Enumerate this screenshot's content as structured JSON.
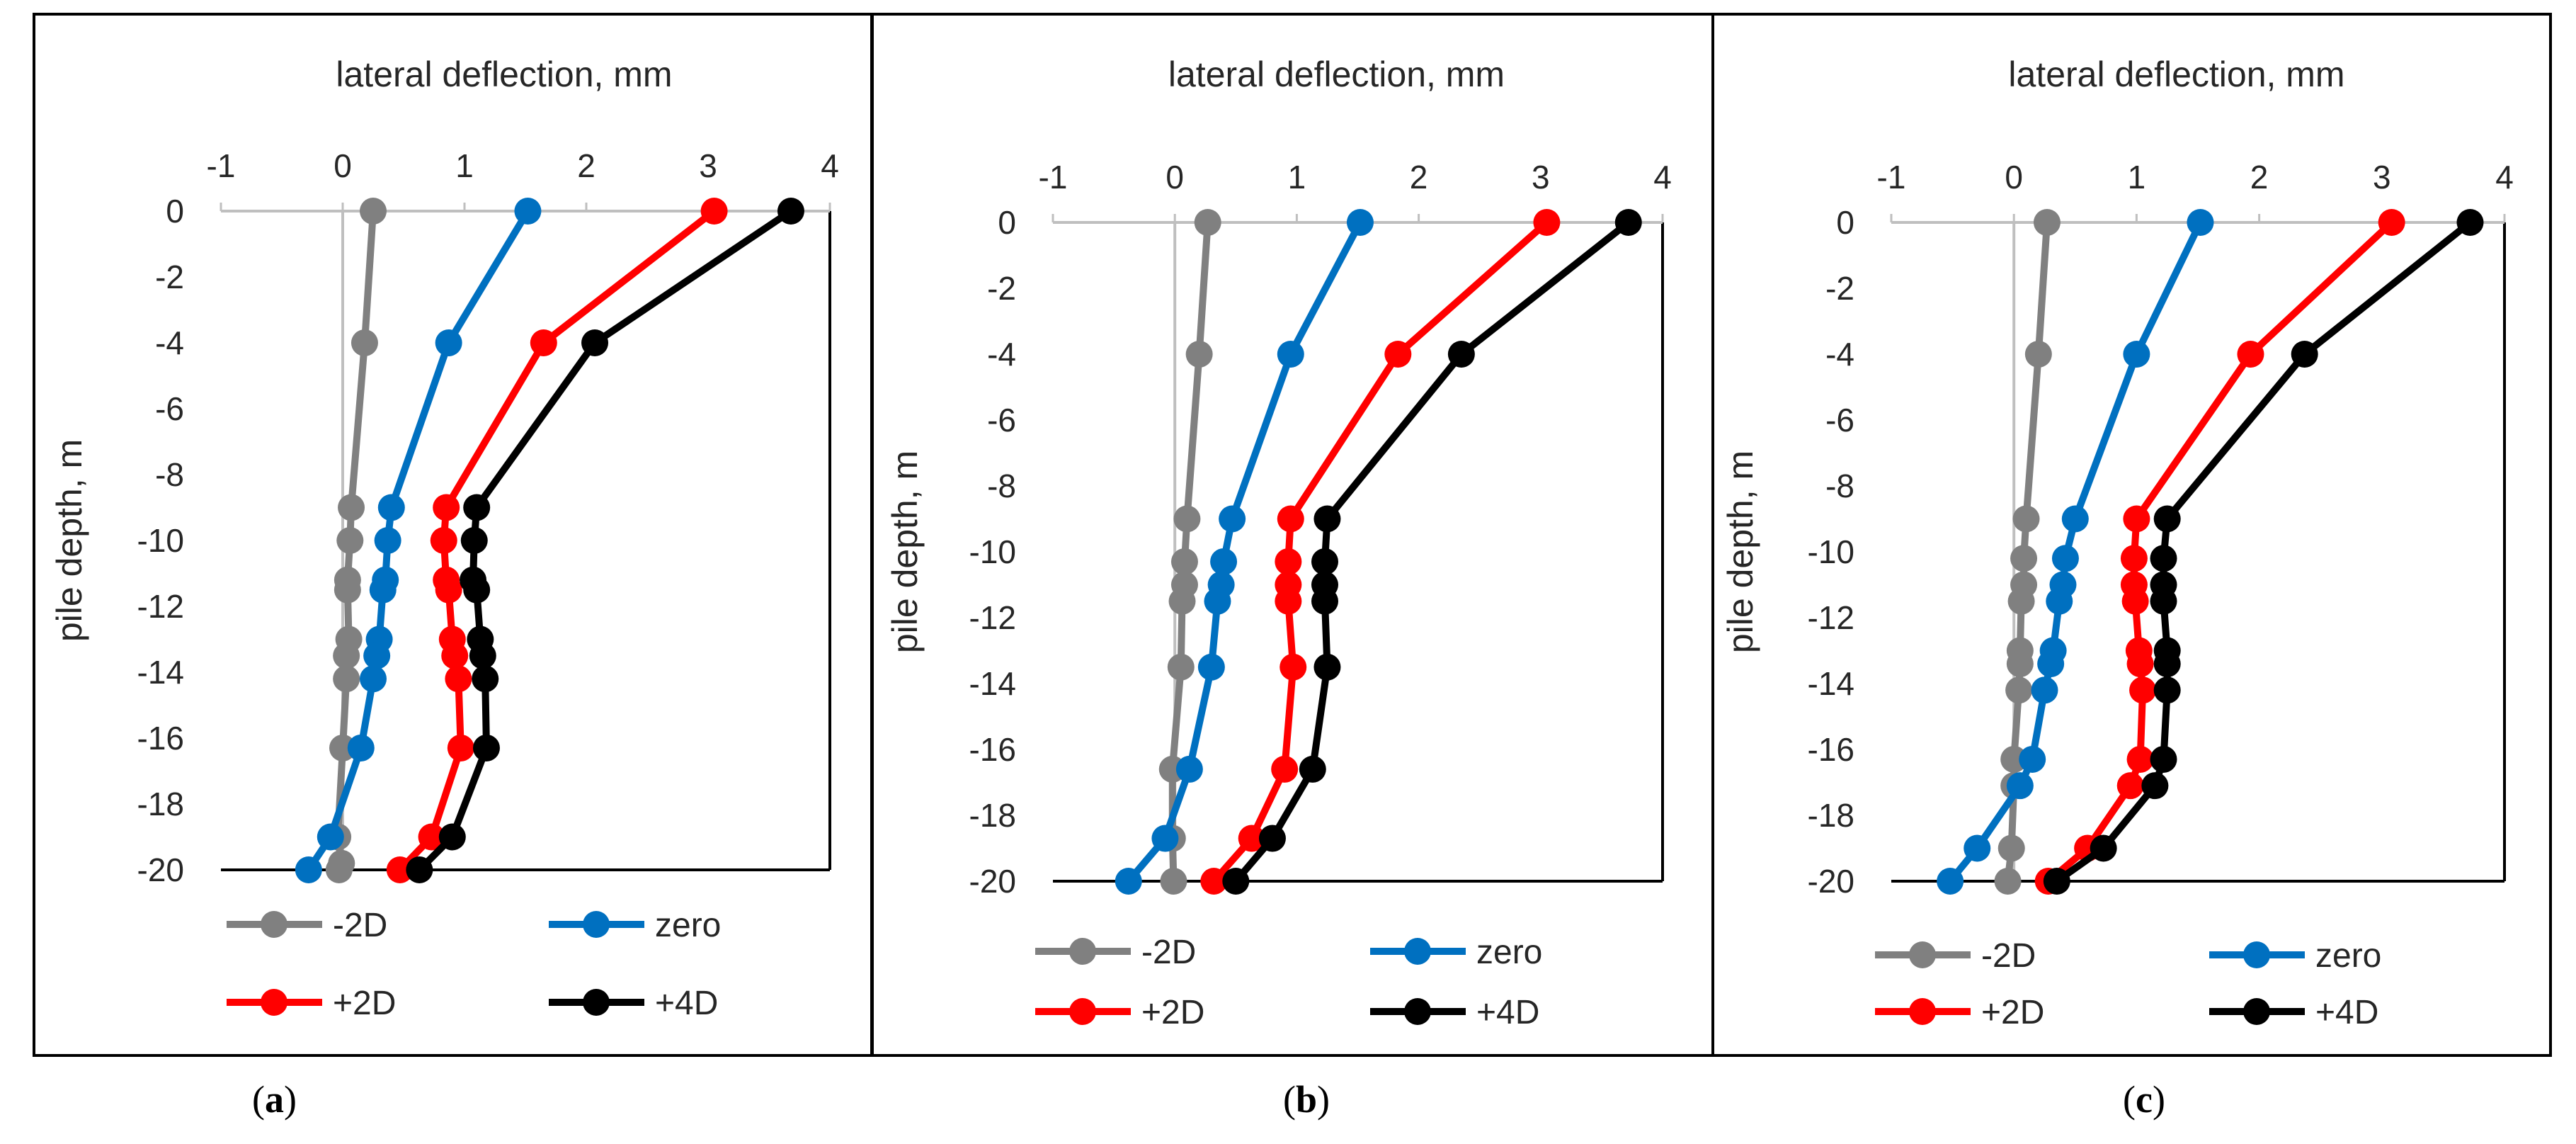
{
  "figure": {
    "colors": {
      "-2D": "#808080",
      "zero": "#0070c0",
      "+2D": "#ff0000",
      "+4D": "#000000"
    },
    "legend_order": [
      "-2D",
      "zero",
      "+2D",
      "+4D"
    ]
  },
  "chart_data": [
    {
      "type": "line",
      "panel_label": "(a)",
      "panel_letter": "a",
      "xlabel": "lateral deflection, mm",
      "ylabel": "pile depth, m",
      "xlim": [
        -1,
        4
      ],
      "ylim": [
        -20,
        0
      ],
      "xticks": [
        -1,
        0,
        1,
        2,
        3,
        4
      ],
      "yticks": [
        0,
        -2,
        -4,
        -6,
        -8,
        -10,
        -12,
        -14,
        -16,
        -18,
        -20
      ],
      "series": [
        {
          "name": "-2D",
          "x": [
            0.25,
            0.18,
            0.07,
            0.06,
            0.04,
            0.04,
            0.05,
            0.03,
            0.03,
            0.0,
            -0.04,
            -0.01,
            -0.03
          ],
          "y": [
            0,
            -4,
            -9,
            -10,
            -11.2,
            -11.5,
            -13,
            -13.5,
            -14.2,
            -16.3,
            -19,
            -19.8,
            -20
          ]
        },
        {
          "name": "zero",
          "x": [
            1.52,
            0.87,
            0.4,
            0.37,
            0.35,
            0.33,
            0.3,
            0.28,
            0.25,
            0.15,
            -0.1,
            -0.28
          ],
          "y": [
            0,
            -4,
            -9,
            -10,
            -11.2,
            -11.5,
            -13,
            -13.5,
            -14.2,
            -16.3,
            -19,
            -20
          ]
        },
        {
          "name": "+2D",
          "x": [
            3.05,
            1.65,
            0.85,
            0.83,
            0.85,
            0.87,
            0.9,
            0.92,
            0.95,
            0.97,
            0.73,
            0.47
          ],
          "y": [
            0,
            -4,
            -9,
            -10,
            -11.2,
            -11.5,
            -13,
            -13.5,
            -14.2,
            -16.3,
            -19,
            -20
          ]
        },
        {
          "name": "+4D",
          "x": [
            3.68,
            2.07,
            1.1,
            1.08,
            1.07,
            1.1,
            1.13,
            1.15,
            1.17,
            1.18,
            0.9,
            0.63
          ],
          "y": [
            0,
            -4,
            -9,
            -10,
            -11.2,
            -11.5,
            -13,
            -13.5,
            -14.2,
            -16.3,
            -19,
            -20
          ]
        }
      ]
    },
    {
      "type": "line",
      "panel_label": "(b)",
      "panel_letter": "b",
      "xlabel": "lateral deflection, mm",
      "ylabel": "pile depth, m",
      "xlim": [
        -1,
        4
      ],
      "ylim": [
        -20,
        0
      ],
      "xticks": [
        -1,
        0,
        1,
        2,
        3,
        4
      ],
      "yticks": [
        0,
        -2,
        -4,
        -6,
        -8,
        -10,
        -12,
        -14,
        -16,
        -18,
        -20
      ],
      "series": [
        {
          "name": "-2D",
          "x": [
            0.27,
            0.2,
            0.1,
            0.08,
            0.08,
            0.06,
            0.05,
            -0.02,
            -0.02,
            -0.01
          ],
          "y": [
            0,
            -4,
            -9,
            -10.3,
            -11,
            -11.5,
            -13.5,
            -16.6,
            -18.7,
            -20
          ]
        },
        {
          "name": "zero",
          "x": [
            1.52,
            0.95,
            0.47,
            0.4,
            0.38,
            0.35,
            0.3,
            0.12,
            -0.08,
            -0.38
          ],
          "y": [
            0,
            -4,
            -9,
            -10.3,
            -11,
            -11.5,
            -13.5,
            -16.6,
            -18.7,
            -20
          ]
        },
        {
          "name": "+2D",
          "x": [
            3.05,
            1.83,
            0.95,
            0.93,
            0.93,
            0.93,
            0.97,
            0.9,
            0.63,
            0.32
          ],
          "y": [
            0,
            -4,
            -9,
            -10.3,
            -11,
            -11.5,
            -13.5,
            -16.6,
            -18.7,
            -20
          ]
        },
        {
          "name": "+4D",
          "x": [
            3.72,
            2.35,
            1.25,
            1.23,
            1.23,
            1.23,
            1.25,
            1.13,
            0.8,
            0.5
          ],
          "y": [
            0,
            -4,
            -9,
            -10.3,
            -11,
            -11.5,
            -13.5,
            -16.6,
            -18.7,
            -20
          ]
        }
      ]
    },
    {
      "type": "line",
      "panel_label": "(c)",
      "panel_letter": "c",
      "xlabel": "lateral deflection, mm",
      "ylabel": "pile depth, m",
      "xlim": [
        -1,
        4
      ],
      "ylim": [
        -20,
        0
      ],
      "xticks": [
        -1,
        0,
        1,
        2,
        3,
        4
      ],
      "yticks": [
        0,
        -2,
        -4,
        -6,
        -8,
        -10,
        -12,
        -14,
        -16,
        -18,
        -20
      ],
      "series": [
        {
          "name": "-2D",
          "x": [
            0.27,
            0.2,
            0.1,
            0.08,
            0.08,
            0.06,
            0.05,
            0.05,
            0.04,
            0.0,
            0.0,
            -0.02,
            -0.05
          ],
          "y": [
            0,
            -4,
            -9,
            -10.2,
            -11,
            -11.5,
            -13,
            -13.4,
            -14.2,
            -16.3,
            -17.1,
            -19,
            -20
          ]
        },
        {
          "name": "zero",
          "x": [
            1.52,
            1.0,
            0.5,
            0.42,
            0.4,
            0.37,
            0.32,
            0.3,
            0.25,
            0.15,
            0.05,
            -0.3,
            -0.52
          ],
          "y": [
            0,
            -4,
            -9,
            -10.2,
            -11,
            -11.5,
            -13,
            -13.4,
            -14.2,
            -16.3,
            -17.1,
            -19,
            -20
          ]
        },
        {
          "name": "+2D",
          "x": [
            3.08,
            1.93,
            1.0,
            0.98,
            0.98,
            0.99,
            1.02,
            1.03,
            1.05,
            1.03,
            0.95,
            0.6,
            0.28
          ],
          "y": [
            0,
            -4,
            -9,
            -10.2,
            -11,
            -11.5,
            -13,
            -13.4,
            -14.2,
            -16.3,
            -17.1,
            -19,
            -20
          ]
        },
        {
          "name": "+4D",
          "x": [
            3.72,
            2.37,
            1.25,
            1.22,
            1.22,
            1.22,
            1.25,
            1.25,
            1.25,
            1.22,
            1.15,
            0.73,
            0.35
          ],
          "y": [
            0,
            -4,
            -9,
            -10.2,
            -11,
            -11.5,
            -13,
            -13.4,
            -14.2,
            -16.3,
            -17.1,
            -19,
            -20
          ]
        }
      ]
    }
  ]
}
